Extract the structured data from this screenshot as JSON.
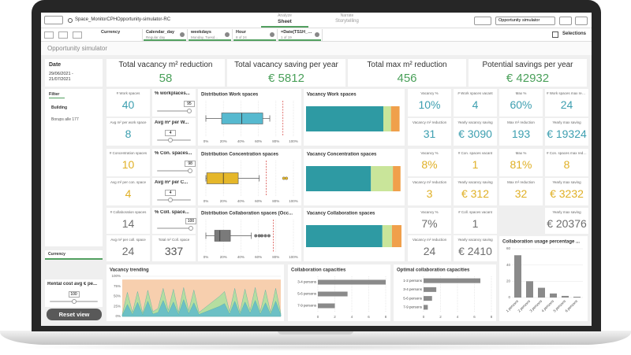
{
  "toolbar": {
    "app": "Space_MonitorCPHOpportunity-simulator-RC",
    "analyze": "Analyze",
    "sheet": "Sheet",
    "narrate": "Narrate",
    "storytelling": "Storytelling",
    "sheet_menu": "Opportunity simulator",
    "selections": "Selections"
  },
  "filters": [
    {
      "name": "Currency"
    },
    {
      "name": "Calendar_day",
      "state": "Regular day"
    },
    {
      "name": "weekdays",
      "state": "Monday, Tuesd..."
    },
    {
      "name": "Hour",
      "state": "8 of 24"
    },
    {
      "name": "=Date(TS1H_DA...",
      "state": "1 of 19"
    }
  ],
  "sheet_title": "Opportunity simulator",
  "sidebar": {
    "date_label": "Date",
    "date_value": "29/06/2021 - 21/07/2021",
    "filter_tab": "Filter",
    "building_label": "Building",
    "building_value": "Borups alle 177",
    "currency": "Currency",
    "rental": {
      "label": "Rental cost avg € pe...",
      "value": 100,
      "range": [
        0,
        200
      ]
    },
    "reset": "Reset view"
  },
  "kpis": [
    {
      "label": "Total vacancy m² reduction",
      "value": 58
    },
    {
      "label": "Total vacancy saving per year",
      "value": "€ 5812"
    },
    {
      "label": "Total max m² reduction",
      "value": 456
    },
    {
      "label": "Potential savings per year",
      "value": "€ 42932"
    }
  ],
  "rows": [
    {
      "color": "#3d9fb0",
      "count": {
        "label": "# Work spaces",
        "value": 40
      },
      "avg": {
        "label": "Avg m² per work space",
        "value": 8
      },
      "slider": {
        "label": "% workplaces...",
        "value": 95,
        "range": [
          0,
          100
        ]
      },
      "lower": {
        "type": "slider",
        "label": "Avg m² per W...",
        "value": 4,
        "range": [
          0,
          10
        ]
      },
      "box": {
        "type": "boxplot",
        "title": "Distribution Work spaces",
        "color": "#56b9cf",
        "min": 0,
        "q1": 18,
        "median": 41,
        "q3": 65,
        "max": 73,
        "reference": 88,
        "xlim": [
          0,
          100
        ],
        "xticks": [
          {
            "value": 0,
            "label": "0%"
          },
          {
            "value": 20,
            "label": "20%"
          },
          {
            "value": 40,
            "label": "40%"
          },
          {
            "value": 60,
            "label": "60%"
          },
          {
            "value": 80,
            "label": "80%"
          },
          {
            "value": 100,
            "label": "100%"
          }
        ]
      },
      "stacked": {
        "type": "stacked",
        "title": "Vacancy Work spaces",
        "values": [
          81,
          8,
          9
        ],
        "colors": [
          "#2e9aa3",
          "#c9e59a",
          "#f0a04b"
        ],
        "xlim": [
          0,
          100
        ]
      },
      "stats": [
        {
          "label": "Vacancy %",
          "value": "10%"
        },
        {
          "label": "# Work spaces vacant",
          "value": 4
        },
        {
          "label": "Max %",
          "value": "60%"
        },
        {
          "label": "# Work spaces max reduction",
          "value": 24
        },
        {
          "label": "Vacancy m² reduction",
          "value": 31
        },
        {
          "label": "Yearly vacancy saving",
          "value": "€ 3090"
        },
        {
          "label": "Max m² reduction",
          "value": 193
        },
        {
          "label": "Yearly max saving",
          "value": "€ 19324"
        }
      ]
    },
    {
      "color": "#e0b026",
      "count": {
        "label": "# Concentration spaces",
        "value": 10
      },
      "avg": {
        "label": "Avg m² per con. space",
        "value": 4
      },
      "slider": {
        "label": "% Con. spaces...",
        "value": 98,
        "range": [
          0,
          100
        ]
      },
      "lower": {
        "type": "slider",
        "label": "Avg m² per C...",
        "value": 4,
        "range": [
          0,
          10
        ]
      },
      "box": {
        "type": "boxplot",
        "title": "Distribution Concentration spaces",
        "color": "#e5b72a",
        "min": 0,
        "q1": 1,
        "median": 20,
        "q3": 37,
        "max": 61,
        "outliers": [
          89,
          92
        ],
        "reference": 69,
        "xlim": [
          0,
          100
        ],
        "xticks": [
          {
            "value": 0,
            "label": "0%"
          },
          {
            "value": 20,
            "label": "20%"
          },
          {
            "value": 40,
            "label": "40%"
          },
          {
            "value": 60,
            "label": "60%"
          },
          {
            "value": 80,
            "label": "80%"
          },
          {
            "value": 100,
            "label": "100%"
          }
        ]
      },
      "stacked": {
        "type": "stacked",
        "title": "Vacancy Concentration spaces",
        "values": [
          68,
          23,
          8
        ],
        "colors": [
          "#2e9aa3",
          "#c9e59a",
          "#f0a04b"
        ],
        "xlim": [
          0,
          100
        ]
      },
      "stats": [
        {
          "label": "Vacancy %",
          "value": "8%"
        },
        {
          "label": "# Con. spaces vacant",
          "value": 1
        },
        {
          "label": "Max %",
          "value": "81%"
        },
        {
          "label": "# Con. spaces max reduction",
          "value": 8
        },
        {
          "label": "Vacancy m² reduction",
          "value": 3
        },
        {
          "label": "Yearly vacancy saving",
          "value": "€ 312"
        },
        {
          "label": "Max m² reduction",
          "value": 32
        },
        {
          "label": "Yearly max saving",
          "value": "€ 3232"
        }
      ]
    },
    {
      "color": "#6e6e6e",
      "count": {
        "label": "# Collaboration spaces",
        "value": 14
      },
      "avg": {
        "label": "Avg m² per coll. space",
        "value": 24
      },
      "slider": {
        "label": "% Coll. space...",
        "value": 100,
        "range": [
          0,
          100
        ]
      },
      "lower": {
        "type": "kpi",
        "label": "Total m² Coll. space",
        "value": 337
      },
      "box": {
        "type": "boxplot",
        "title": "Distribution Collaboration spaces (Occ...",
        "color": "#7a7a7a",
        "min": 0,
        "q1": 10,
        "median": 16,
        "q3": 28,
        "max": 52,
        "outliers": [
          57,
          61,
          64,
          68,
          72
        ],
        "reference": 77,
        "xlim": [
          0,
          100
        ],
        "xticks": [
          {
            "value": 0,
            "label": "0%"
          },
          {
            "value": 20,
            "label": "20%"
          },
          {
            "value": 40,
            "label": "40%"
          },
          {
            "value": 60,
            "label": "60%"
          },
          {
            "value": 80,
            "label": "80%"
          },
          {
            "value": 100,
            "label": "100%"
          }
        ]
      },
      "stacked": {
        "type": "stacked",
        "title": "Vacancy Collaboration spaces",
        "values": [
          80,
          10,
          10
        ],
        "colors": [
          "#2e9aa3",
          "#c9e59a",
          "#f0a04b"
        ],
        "xlim": [
          0,
          100
        ]
      },
      "stats": [
        {
          "label": "Vacancy %",
          "value": "7%"
        },
        {
          "label": "# Coll. spaces vacant",
          "value": 1
        },
        {
          "label": "Yearly max saving",
          "value": "€ 20376"
        },
        {
          "label": "Vacancy m² reduction",
          "value": 24
        },
        {
          "label": "Yearly vacancy saving",
          "value": "€ 2410"
        }
      ]
    }
  ],
  "bottom_charts": [
    {
      "type": "area",
      "title": "Vacancy trending",
      "ylim": [
        0,
        100
      ],
      "yticks": [
        {
          "value": 0,
          "label": "0%"
        },
        {
          "value": 25,
          "label": "25%"
        },
        {
          "value": 50,
          "label": "50%"
        },
        {
          "value": 75,
          "label": "75%"
        },
        {
          "value": 100,
          "label": "100%"
        }
      ],
      "series": [
        {
          "color": "#f7cfae",
          "values": [
            92,
            92,
            92,
            92,
            92,
            92,
            92,
            92,
            92,
            92,
            92,
            92,
            92,
            92,
            92,
            92,
            92,
            92,
            92,
            92,
            92,
            92,
            92,
            92,
            92,
            92,
            92,
            92,
            92,
            92,
            92,
            92
          ]
        },
        {
          "color": "#b5dea0",
          "values": [
            5,
            60,
            10,
            62,
            8,
            65,
            12,
            20,
            70,
            15,
            68,
            10,
            72,
            14,
            66,
            10,
            20,
            30,
            40,
            50,
            62,
            12,
            70,
            10,
            68,
            15,
            72,
            12,
            66,
            10,
            70,
            8
          ]
        },
        {
          "color": "#6cc0c5",
          "values": [
            3,
            30,
            5,
            35,
            4,
            38,
            6,
            10,
            40,
            8,
            36,
            5,
            42,
            7,
            34,
            5,
            10,
            15,
            20,
            25,
            32,
            6,
            38,
            5,
            36,
            8,
            40,
            6,
            34,
            5,
            38,
            4
          ]
        }
      ]
    },
    {
      "type": "hbar",
      "title": "Collaboration capacities",
      "categories": [
        "3-4 persons",
        "5-6 persons",
        "7-9 persons"
      ],
      "values": [
        8,
        3.5,
        2
      ],
      "color": "#8a8a8a",
      "xlim": [
        0,
        8
      ],
      "xticks": [
        0,
        2,
        4,
        6,
        8
      ]
    },
    {
      "type": "hbar",
      "title": "Optimal collaboration capacities",
      "categories": [
        "1-2 persons",
        "3-4 persons",
        "5-6 persons",
        "7-9 persons"
      ],
      "values": [
        6.7,
        1.5,
        1,
        0.5
      ],
      "color": "#8a8a8a",
      "xlim": [
        0,
        8
      ],
      "xticks": [
        0,
        2,
        4,
        6,
        8
      ]
    }
  ],
  "usage_chart": {
    "type": "bar",
    "title": "Collaboration usage percentage ...",
    "categories": [
      "1 persons",
      "2 persons",
      "3 persons",
      "4 persons",
      "5 persons",
      "6 persons"
    ],
    "values": [
      52,
      20,
      12,
      5,
      2,
      1
    ],
    "color": "#8a8a8a",
    "ylim": [
      0,
      60
    ],
    "yticks": [
      0,
      20,
      40,
      60
    ]
  }
}
